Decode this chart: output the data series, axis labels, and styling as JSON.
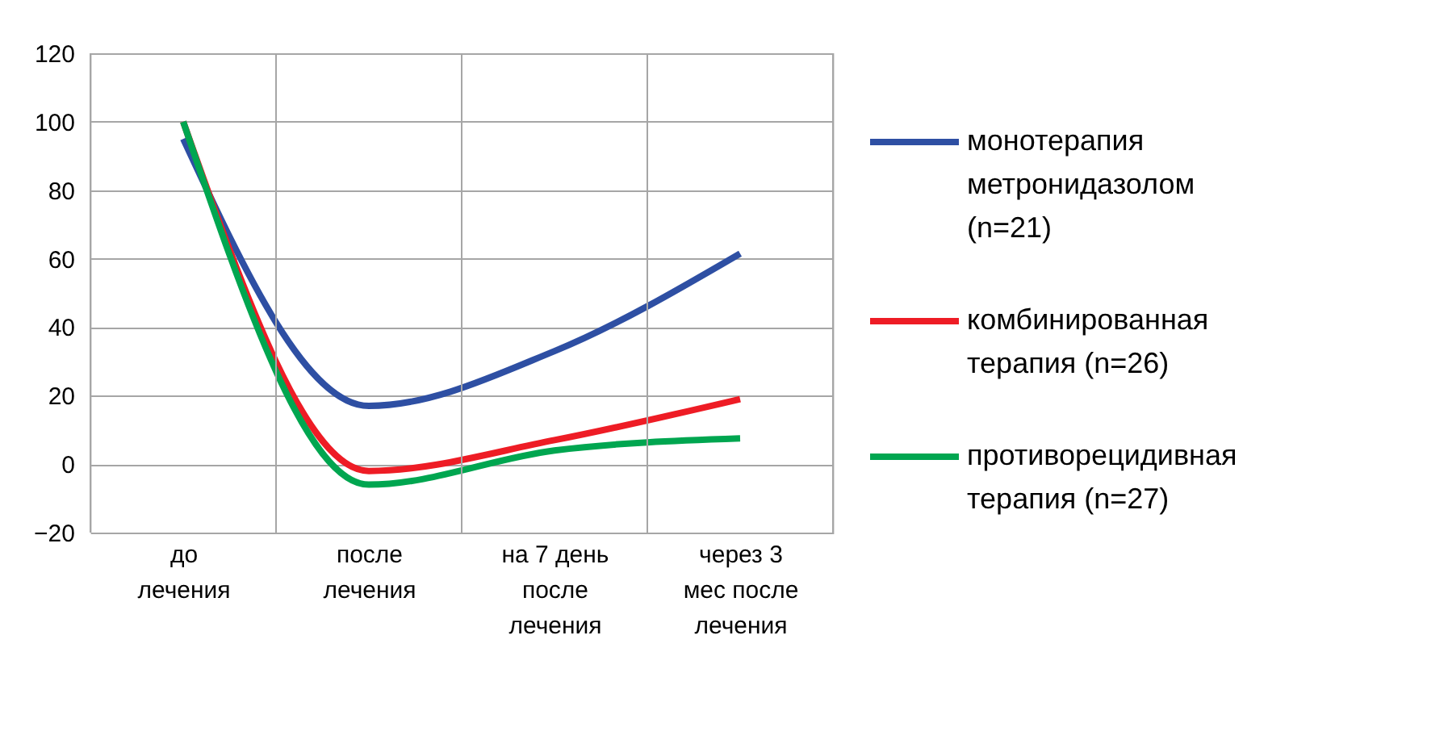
{
  "chart_data": {
    "type": "line",
    "categories": [
      "до лечения",
      "после лечения",
      "на 7 день после лечения",
      "через 3 мес после лечения"
    ],
    "series": [
      {
        "name": "монотерапия метронидазолом (n=21)",
        "color": "#2e4fa3",
        "values": [
          95,
          17,
          33,
          61.5
        ]
      },
      {
        "name": "комбинированная терапия (n=26)",
        "color": "#ee1c25",
        "values": [
          100,
          -2,
          7,
          19
        ]
      },
      {
        "name": "противорецидивная терапия (n=27)",
        "color": "#00a650",
        "values": [
          100,
          -6,
          4,
          7.5
        ]
      }
    ],
    "ylim": [
      -20,
      120
    ],
    "yticks": [
      -20,
      0,
      20,
      40,
      60,
      80,
      100,
      120
    ],
    "grid": true,
    "legend": "right",
    "marker": "none",
    "line_style": "solid"
  }
}
